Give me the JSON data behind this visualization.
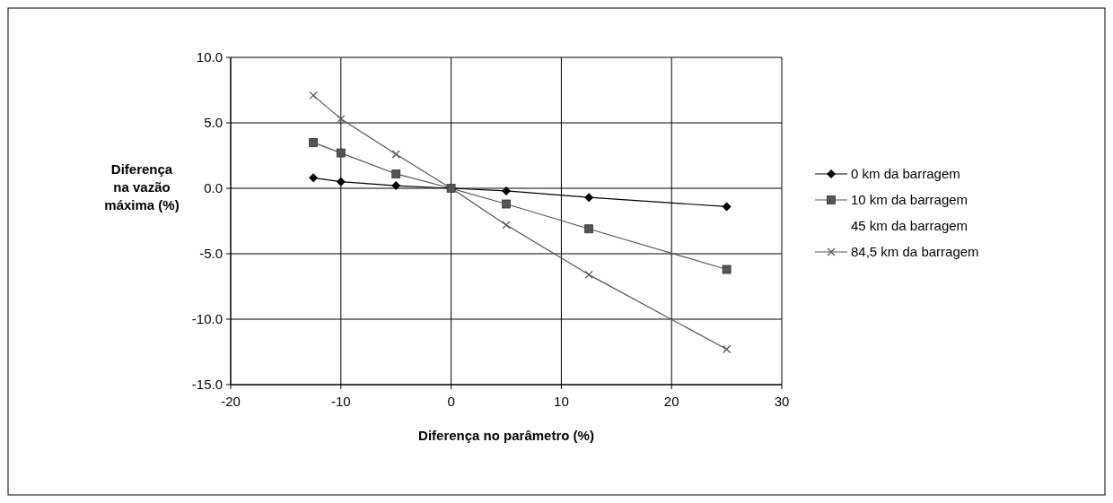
{
  "chart_data": {
    "type": "line",
    "xlabel": "Diferença no parâmetro (%)",
    "ylabel": "Diferença na vazão máxima (%)",
    "x": [
      -12.5,
      -10,
      -5,
      0,
      5,
      12.5,
      25
    ],
    "series": [
      {
        "name": "0 km da barragem",
        "color": "#000000",
        "marker": "diamond",
        "values": [
          0.8,
          0.5,
          0.2,
          0,
          -0.2,
          -0.7,
          -1.4
        ]
      },
      {
        "name": "10 km da barragem",
        "color": "#555555",
        "marker": "square",
        "values": [
          3.5,
          2.7,
          1.1,
          0,
          -1.2,
          -3.1,
          -6.2
        ]
      },
      {
        "name": "45 km da barragem",
        "marker": "none",
        "values": [
          null,
          null,
          null,
          null,
          null,
          null,
          null
        ]
      },
      {
        "name": "84,5 km da barragem",
        "color": "#555555",
        "marker": "cross",
        "values": [
          7.1,
          5.3,
          2.6,
          0,
          -2.8,
          -6.6,
          -12.3
        ]
      }
    ],
    "xlim": [
      -20,
      30
    ],
    "xticks": [
      -20,
      -10,
      0,
      10,
      20,
      30
    ],
    "ylim": [
      -15,
      10
    ],
    "yticks": [
      {
        "value": -15,
        "label": "-15.0"
      },
      {
        "value": -10,
        "label": "-10.0"
      },
      {
        "value": -5,
        "label": "-5.0"
      },
      {
        "value": 0,
        "label": "0.0"
      },
      {
        "value": 5,
        "label": "5.0"
      },
      {
        "value": 10,
        "label": "10.0"
      }
    ],
    "grid": true,
    "legend": "right"
  }
}
